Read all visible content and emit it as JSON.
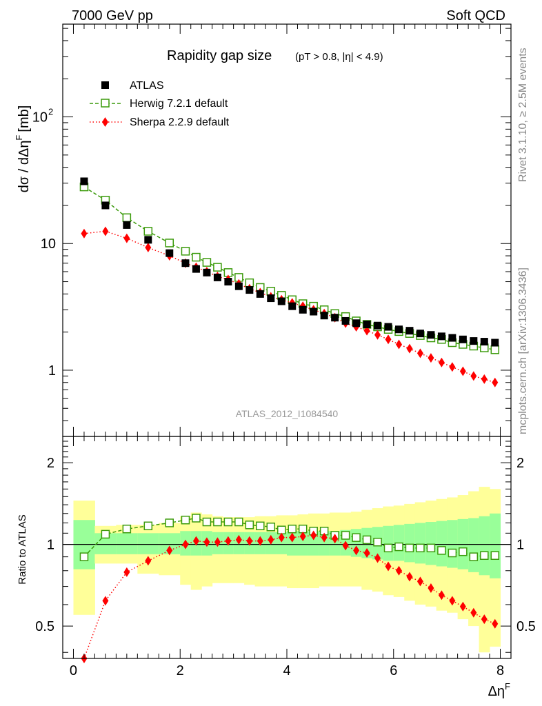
{
  "header": {
    "left": "7000 GeV pp",
    "right": "Soft QCD"
  },
  "side_labels": {
    "rivet": "Rivet 3.1.10, ≥ 2.5M events",
    "mcplots": "mcplots.cern.ch [arXiv:1306.3436]"
  },
  "chart_data": [
    {
      "type": "scatter",
      "title": "Rapidity gap size",
      "subtitle": "(pT > 0.8, |η| < 4.9)",
      "ylabel": "dσ / dΔη",
      "ylabel_sup": "F",
      "ylabel_unit": "[mb]",
      "xlabel": "Δη",
      "xlabel_sup": "F",
      "watermark": "ATLAS_2012_I1084540",
      "yscale": "log",
      "xlim": [
        -0.2,
        8.2
      ],
      "ylim": [
        0.3,
        540
      ],
      "yticks": [
        {
          "value": 1,
          "label": "1"
        },
        {
          "value": 10,
          "label": "10"
        },
        {
          "value": 100,
          "label": "10",
          "sup": "2"
        }
      ],
      "xticks": [
        {
          "value": 0,
          "label": "0"
        },
        {
          "value": 2,
          "label": "2"
        },
        {
          "value": 4,
          "label": "4"
        },
        {
          "value": 6,
          "label": "6"
        },
        {
          "value": 8,
          "label": "8"
        }
      ],
      "legend_position": "top-left",
      "x": [
        0.2,
        0.6,
        1.0,
        1.4,
        1.8,
        2.1,
        2.3,
        2.5,
        2.7,
        2.9,
        3.1,
        3.3,
        3.5,
        3.7,
        3.9,
        4.1,
        4.3,
        4.5,
        4.7,
        4.9,
        5.1,
        5.3,
        5.5,
        5.7,
        5.9,
        6.1,
        6.3,
        6.5,
        6.7,
        6.9,
        7.1,
        7.3,
        7.5,
        7.7,
        7.9
      ],
      "series": [
        {
          "name": "ATLAS",
          "marker": "filled-square",
          "color": "#000000",
          "values": [
            31,
            20,
            14,
            10.7,
            8.4,
            7.0,
            6.3,
            5.9,
            5.4,
            5.0,
            4.6,
            4.3,
            4.0,
            3.7,
            3.5,
            3.2,
            3.0,
            2.9,
            2.7,
            2.6,
            2.45,
            2.35,
            2.3,
            2.25,
            2.2,
            2.1,
            2.05,
            1.95,
            1.9,
            1.85,
            1.8,
            1.75,
            1.7,
            1.68,
            1.65
          ]
        },
        {
          "name": "Herwig 7.2.1 default",
          "marker": "open-square",
          "line": "dashed",
          "color": "#3a9a0a",
          "values": [
            28,
            22,
            16,
            12.5,
            10.1,
            8.7,
            7.8,
            7.1,
            6.5,
            5.9,
            5.4,
            4.9,
            4.5,
            4.2,
            3.9,
            3.6,
            3.35,
            3.2,
            3.0,
            2.8,
            2.65,
            2.45,
            2.3,
            2.2,
            2.1,
            2.02,
            1.95,
            1.88,
            1.8,
            1.75,
            1.65,
            1.6,
            1.55,
            1.5,
            1.45
          ]
        },
        {
          "name": "Sherpa 2.2.9 default",
          "marker": "filled-diamond",
          "line": "dotted",
          "color": "#ff0000",
          "values": [
            12,
            12.5,
            11,
            9.3,
            8.0,
            7.0,
            6.5,
            6.0,
            5.5,
            5.2,
            4.8,
            4.4,
            4.1,
            3.8,
            3.6,
            3.4,
            3.2,
            3.0,
            2.8,
            2.6,
            2.35,
            2.2,
            2.05,
            1.9,
            1.75,
            1.6,
            1.48,
            1.36,
            1.25,
            1.15,
            1.06,
            0.98,
            0.9,
            0.85,
            0.8
          ]
        }
      ]
    },
    {
      "type": "scatter",
      "ylabel": "Ratio to ATLAS",
      "yscale": "log",
      "ylim": [
        0.38,
        2.5
      ],
      "xlim": [
        -0.2,
        8.2
      ],
      "yticks": [
        {
          "value": 0.5,
          "label": "0.5"
        },
        {
          "value": 1,
          "label": "1"
        },
        {
          "value": 2,
          "label": "2"
        }
      ],
      "reference_line": 1,
      "bands": {
        "bins": [
          0.0,
          0.4,
          0.8,
          1.2,
          1.6,
          2.0,
          2.2,
          2.4,
          2.6,
          2.8,
          3.0,
          3.2,
          3.4,
          3.6,
          3.8,
          4.0,
          4.2,
          4.4,
          4.6,
          4.8,
          5.0,
          5.2,
          5.4,
          5.6,
          5.8,
          6.0,
          6.2,
          6.4,
          6.6,
          6.8,
          7.0,
          7.2,
          7.4,
          7.6,
          7.8,
          8.0
        ],
        "inner_color": "#99ff99",
        "outer_color": "#ffff99",
        "inner_lo": [
          0.81,
          0.92,
          0.92,
          0.92,
          0.92,
          0.91,
          0.91,
          0.91,
          0.92,
          0.92,
          0.92,
          0.92,
          0.92,
          0.92,
          0.92,
          0.91,
          0.91,
          0.91,
          0.91,
          0.91,
          0.91,
          0.9,
          0.89,
          0.88,
          0.87,
          0.87,
          0.86,
          0.85,
          0.84,
          0.83,
          0.82,
          0.81,
          0.79,
          0.77,
          0.75
        ],
        "inner_hi": [
          1.23,
          1.1,
          1.1,
          1.1,
          1.1,
          1.12,
          1.12,
          1.12,
          1.11,
          1.11,
          1.11,
          1.11,
          1.11,
          1.11,
          1.11,
          1.12,
          1.12,
          1.12,
          1.12,
          1.12,
          1.13,
          1.14,
          1.15,
          1.16,
          1.17,
          1.18,
          1.19,
          1.2,
          1.21,
          1.22,
          1.23,
          1.24,
          1.25,
          1.27,
          1.3
        ],
        "outer_lo": [
          0.55,
          0.85,
          0.85,
          0.78,
          0.77,
          0.71,
          0.68,
          0.7,
          0.72,
          0.72,
          0.72,
          0.71,
          0.7,
          0.7,
          0.7,
          0.69,
          0.69,
          0.69,
          0.7,
          0.7,
          0.7,
          0.7,
          0.68,
          0.67,
          0.65,
          0.64,
          0.62,
          0.6,
          0.59,
          0.57,
          0.56,
          0.53,
          0.5,
          0.4,
          0.42
        ],
        "outer_hi": [
          1.45,
          1.17,
          1.18,
          1.18,
          1.2,
          1.27,
          1.31,
          1.29,
          1.27,
          1.26,
          1.26,
          1.26,
          1.27,
          1.27,
          1.28,
          1.28,
          1.29,
          1.3,
          1.3,
          1.31,
          1.31,
          1.32,
          1.34,
          1.36,
          1.38,
          1.39,
          1.41,
          1.43,
          1.45,
          1.47,
          1.49,
          1.52,
          1.57,
          1.63,
          1.6
        ]
      },
      "x": [
        0.2,
        0.6,
        1.0,
        1.4,
        1.8,
        2.1,
        2.3,
        2.5,
        2.7,
        2.9,
        3.1,
        3.3,
        3.5,
        3.7,
        3.9,
        4.1,
        4.3,
        4.5,
        4.7,
        4.9,
        5.1,
        5.3,
        5.5,
        5.7,
        5.9,
        6.1,
        6.3,
        6.5,
        6.7,
        6.9,
        7.1,
        7.3,
        7.5,
        7.7,
        7.9
      ],
      "series": [
        {
          "name": "Herwig 7.2.1 default",
          "marker": "open-square",
          "line": "dashed",
          "color": "#3a9a0a",
          "values": [
            0.9,
            1.09,
            1.14,
            1.17,
            1.2,
            1.23,
            1.25,
            1.21,
            1.21,
            1.21,
            1.21,
            1.18,
            1.17,
            1.16,
            1.13,
            1.14,
            1.14,
            1.12,
            1.12,
            1.08,
            1.08,
            1.06,
            1.04,
            1.02,
            0.97,
            0.98,
            0.97,
            0.97,
            0.97,
            0.95,
            0.93,
            0.94,
            0.9,
            0.91,
            0.91
          ]
        },
        {
          "name": "Sherpa 2.2.9 default",
          "marker": "filled-diamond",
          "line": "dotted",
          "color": "#ff0000",
          "values": [
            0.38,
            0.62,
            0.79,
            0.87,
            0.95,
            1.0,
            1.03,
            1.02,
            1.02,
            1.03,
            1.04,
            1.03,
            1.03,
            1.04,
            1.06,
            1.06,
            1.07,
            1.08,
            1.06,
            1.05,
            0.99,
            0.95,
            0.93,
            0.89,
            0.83,
            0.8,
            0.76,
            0.73,
            0.69,
            0.65,
            0.62,
            0.59,
            0.56,
            0.53,
            0.51
          ]
        }
      ]
    }
  ]
}
